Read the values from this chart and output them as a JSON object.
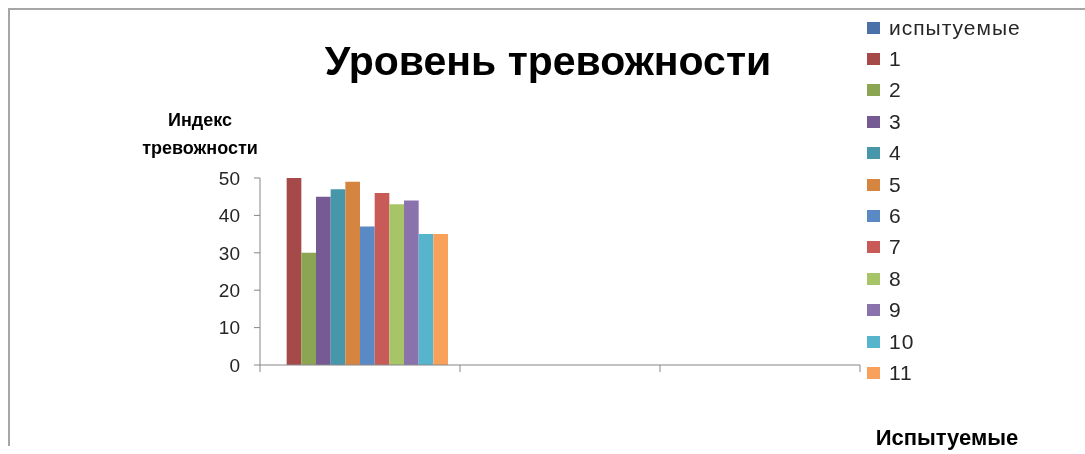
{
  "chart_data": {
    "type": "bar",
    "title": "Уровень тревожности",
    "xlabel": "Испытуемые",
    "ylabel": "Индекс тревожности",
    "categories": [
      null,
      null,
      null
    ],
    "series": [
      {
        "name": "испытуемые",
        "color": "#4a72a8",
        "values": [
          null,
          null,
          null
        ]
      },
      {
        "name": "1",
        "color": "#a54a48",
        "values": [
          50,
          null,
          null
        ]
      },
      {
        "name": "2",
        "color": "#8ba553",
        "values": [
          30,
          null,
          null
        ]
      },
      {
        "name": "3",
        "color": "#765a94",
        "values": [
          45,
          null,
          null
        ]
      },
      {
        "name": "4",
        "color": "#4597a9",
        "values": [
          47,
          null,
          null
        ]
      },
      {
        "name": "5",
        "color": "#d58540",
        "values": [
          49,
          null,
          null
        ]
      },
      {
        "name": "6",
        "color": "#5a8ac6",
        "values": [
          37,
          null,
          null
        ]
      },
      {
        "name": "7",
        "color": "#c85a57",
        "values": [
          46,
          null,
          null
        ]
      },
      {
        "name": "8",
        "color": "#a7c466",
        "values": [
          43,
          null,
          null
        ]
      },
      {
        "name": "9",
        "color": "#8a72ad",
        "values": [
          44,
          null,
          null
        ]
      },
      {
        "name": "10",
        "color": "#56b4cd",
        "values": [
          35,
          null,
          null
        ]
      },
      {
        "name": "11",
        "color": "#f9a15b",
        "values": [
          35,
          null,
          null
        ]
      }
    ],
    "ylim": [
      0,
      50
    ],
    "yticks": [
      0,
      10,
      20,
      30,
      40,
      50
    ],
    "legend": "right"
  }
}
